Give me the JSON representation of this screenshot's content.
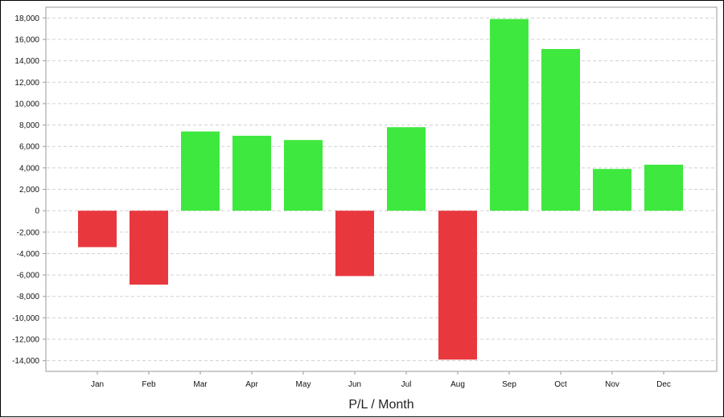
{
  "chart_data": {
    "type": "bar",
    "title": "",
    "xlabel": "P/L / Month",
    "ylabel": "",
    "categories": [
      "Jan",
      "Feb",
      "Mar",
      "Apr",
      "May",
      "Jun",
      "Jul",
      "Aug",
      "Sep",
      "Oct",
      "Nov",
      "Dec"
    ],
    "values": [
      -3400,
      -6900,
      7400,
      7000,
      6600,
      -6100,
      7800,
      -13900,
      17900,
      15100,
      3900,
      4300
    ],
    "ylim": [
      -15000,
      19000
    ],
    "yticks": [
      18000,
      16000,
      14000,
      12000,
      10000,
      8000,
      6000,
      4000,
      2000,
      0,
      -2000,
      -4000,
      -6000,
      -8000,
      -10000,
      -12000,
      -14000
    ],
    "ytick_labels": [
      "18,000",
      "16,000",
      "14,000",
      "12,000",
      "10,000",
      "8,000",
      "6,000",
      "4,000",
      "2,000",
      "0",
      "-2,000",
      "-4,000",
      "-6,000",
      "-8,000",
      "-10,000",
      "-12,000",
      "-14,000"
    ],
    "grid": true,
    "colors": {
      "positive": "#3ee83e",
      "negative": "#e8383e",
      "grid": "#d0d0d0",
      "axis": "#9a9a9a"
    }
  }
}
